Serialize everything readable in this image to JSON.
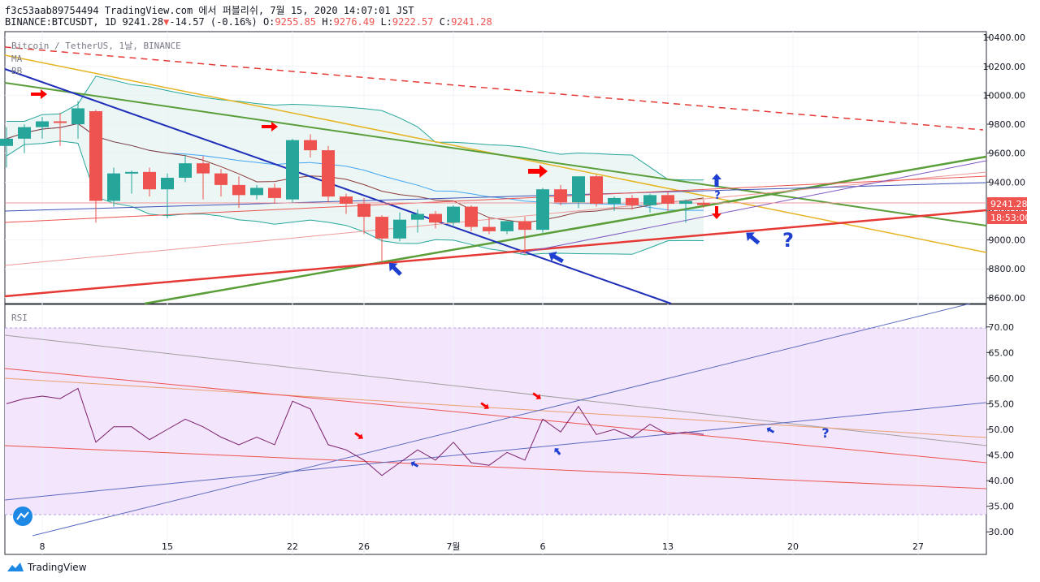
{
  "header": {
    "line1": "f3c53aab89754494 TradingView.com 에서 퍼블리쉬, 7월 15, 2020 14:07:01 JST",
    "symbol": "BINANCE:BTCUSDT, 1D",
    "price": "9241.28",
    "change": "-14.57 (-0.16%)",
    "o_label": "O:",
    "o": "9255.85",
    "h_label": "H:",
    "h": "9276.49",
    "l_label": "L:",
    "l": "9222.57",
    "c_label": "C:",
    "c": "9241.28"
  },
  "pane_labels": {
    "title": "Bitcoin / TetherUS, 1날, BINANCE",
    "ma": "MA",
    "bb": "BB",
    "rsi": "RSI"
  },
  "price_tags": {
    "last": "9241.28",
    "countdown": "18:53:00"
  },
  "annotations": {
    "q1": "?",
    "q2": "?",
    "q3": "?"
  },
  "footer": {
    "brand": "TradingView"
  },
  "colors": {
    "up": "#26a69a",
    "down": "#ef5350",
    "arrow_red": "#ff0000",
    "arrow_blue": "#1e3fd0",
    "rsi_bg": "#f3e5fb",
    "bb_fill": "#e8f5f3"
  },
  "chart_data": [
    {
      "type": "candlestick",
      "title": "Bitcoin / TetherUS, 1날, BINANCE",
      "x_ticks": [
        "8",
        "15",
        "22",
        "26",
        "7월",
        "6",
        "13",
        "20",
        "27"
      ],
      "y_ticks": [
        10400,
        10200,
        10000,
        9800,
        9600,
        9400,
        9200,
        9000,
        8800,
        8600
      ],
      "ylim": [
        8560,
        10440
      ],
      "candles": [
        {
          "o": 9650,
          "h": 9780,
          "l": 9500,
          "c": 9700
        },
        {
          "o": 9700,
          "h": 9800,
          "l": 9600,
          "c": 9780
        },
        {
          "o": 9780,
          "h": 9850,
          "l": 9700,
          "c": 9820
        },
        {
          "o": 9820,
          "h": 9880,
          "l": 9650,
          "c": 9810
        },
        {
          "o": 9800,
          "h": 9960,
          "l": 9700,
          "c": 9910
        },
        {
          "o": 9890,
          "h": 9900,
          "l": 9120,
          "c": 9270
        },
        {
          "o": 9270,
          "h": 9500,
          "l": 9230,
          "c": 9460
        },
        {
          "o": 9460,
          "h": 9480,
          "l": 9320,
          "c": 9470
        },
        {
          "o": 9470,
          "h": 9500,
          "l": 9300,
          "c": 9350
        },
        {
          "o": 9350,
          "h": 9460,
          "l": 9150,
          "c": 9430
        },
        {
          "o": 9430,
          "h": 9590,
          "l": 9400,
          "c": 9530
        },
        {
          "o": 9530,
          "h": 9580,
          "l": 9280,
          "c": 9460
        },
        {
          "o": 9460,
          "h": 9490,
          "l": 9300,
          "c": 9380
        },
        {
          "o": 9380,
          "h": 9440,
          "l": 9220,
          "c": 9310
        },
        {
          "o": 9310,
          "h": 9380,
          "l": 9280,
          "c": 9360
        },
        {
          "o": 9360,
          "h": 9390,
          "l": 9250,
          "c": 9290
        },
        {
          "o": 9280,
          "h": 9700,
          "l": 9260,
          "c": 9690
        },
        {
          "o": 9690,
          "h": 9730,
          "l": 9570,
          "c": 9620
        },
        {
          "o": 9620,
          "h": 9650,
          "l": 9260,
          "c": 9300
        },
        {
          "o": 9300,
          "h": 9320,
          "l": 9180,
          "c": 9250
        },
        {
          "o": 9250,
          "h": 9290,
          "l": 9040,
          "c": 9160
        },
        {
          "o": 9160,
          "h": 9170,
          "l": 8850,
          "c": 9010
        },
        {
          "o": 9010,
          "h": 9190,
          "l": 8990,
          "c": 9140
        },
        {
          "o": 9140,
          "h": 9210,
          "l": 9050,
          "c": 9180
        },
        {
          "o": 9180,
          "h": 9200,
          "l": 9080,
          "c": 9120
        },
        {
          "o": 9120,
          "h": 9240,
          "l": 9100,
          "c": 9230
        },
        {
          "o": 9230,
          "h": 9240,
          "l": 9060,
          "c": 9090
        },
        {
          "o": 9090,
          "h": 9160,
          "l": 9040,
          "c": 9060
        },
        {
          "o": 9060,
          "h": 9140,
          "l": 9040,
          "c": 9130
        },
        {
          "o": 9130,
          "h": 9160,
          "l": 8900,
          "c": 9070
        },
        {
          "o": 9070,
          "h": 9360,
          "l": 9050,
          "c": 9350
        },
        {
          "o": 9350,
          "h": 9380,
          "l": 9240,
          "c": 9260
        },
        {
          "o": 9260,
          "h": 9440,
          "l": 9220,
          "c": 9440
        },
        {
          "o": 9440,
          "h": 9450,
          "l": 9230,
          "c": 9250
        },
        {
          "o": 9250,
          "h": 9300,
          "l": 9200,
          "c": 9290
        },
        {
          "o": 9290,
          "h": 9310,
          "l": 9210,
          "c": 9240
        },
        {
          "o": 9240,
          "h": 9320,
          "l": 9190,
          "c": 9310
        },
        {
          "o": 9310,
          "h": 9330,
          "l": 9200,
          "c": 9250
        },
        {
          "o": 9250,
          "h": 9280,
          "l": 9120,
          "c": 9270
        },
        {
          "o": 9255.85,
          "h": 9276.49,
          "l": 9222.57,
          "c": 9241.28
        }
      ]
    },
    {
      "type": "line",
      "title": "RSI",
      "y_ticks": [
        70,
        65,
        60,
        55,
        50,
        45,
        40,
        35,
        30
      ],
      "ylim": [
        25.6,
        74.4
      ],
      "band": [
        30,
        70
      ],
      "values": [
        55,
        56,
        56.5,
        56,
        58,
        47.5,
        50.5,
        50.5,
        48,
        50,
        52,
        50.5,
        48.5,
        47,
        48.5,
        47,
        55.5,
        54,
        47,
        46,
        44,
        41,
        43.5,
        46,
        44,
        47.5,
        43.5,
        43,
        45.5,
        44,
        52,
        49.5,
        54.5,
        49,
        50,
        48.5,
        51,
        49,
        49.5,
        49
      ]
    }
  ]
}
